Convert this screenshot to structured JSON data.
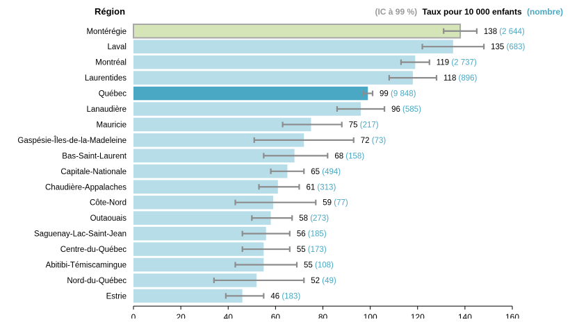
{
  "chart_data": {
    "type": "bar",
    "orientation": "horizontal",
    "category_header": "Région",
    "header": {
      "ci_label": "(IC à 99 %)",
      "rate_label": "Taux pour 10 000 enfants",
      "count_label": "(nombre)"
    },
    "xlim": [
      0,
      160
    ],
    "xticks": [
      0,
      20,
      40,
      60,
      80,
      100,
      120,
      140,
      160
    ],
    "grid": false,
    "categories": [
      "Montérégie",
      "Laval",
      "Montréal",
      "Laurentides",
      "Québec",
      "Lanaudière",
      "Mauricie",
      "Gaspésie-Îles-de-la-Madeleine",
      "Bas-Saint-Laurent",
      "Capitale-Nationale",
      "Chaudière-Appalaches",
      "Côte-Nord",
      "Outaouais",
      "Saguenay-Lac-Saint-Jean",
      "Centre-du-Québec",
      "Abitibi-Témiscamingue",
      "Nord-du-Québec",
      "Estrie"
    ],
    "values": [
      138,
      135,
      119,
      118,
      99,
      96,
      75,
      72,
      68,
      65,
      61,
      59,
      58,
      56,
      55,
      55,
      52,
      46
    ],
    "ci_low": [
      131,
      122,
      113,
      108,
      97,
      86,
      63,
      51,
      55,
      58,
      53,
      43,
      50,
      46,
      46,
      43,
      34,
      39
    ],
    "ci_high": [
      145,
      148,
      125,
      128,
      101,
      106,
      88,
      93,
      82,
      72,
      70,
      77,
      67,
      66,
      66,
      69,
      72,
      55
    ],
    "counts": [
      "2 644",
      "683",
      "2 737",
      "896",
      "9 848",
      "585",
      "217",
      "73",
      "158",
      "494",
      "313",
      "77",
      "273",
      "185",
      "173",
      "108",
      "49",
      "183"
    ],
    "highlight": {
      "Montérégie": "region",
      "Québec": "province"
    },
    "colors": {
      "bar": "#b7dde8",
      "bar_region": "#d5e5b8",
      "bar_region_border": "#a8a8a8",
      "bar_province": "#4aa8c4",
      "errorbar": "#8c8c8c",
      "count_text": "#4aa8c4",
      "header_gray": "#9a9a9a"
    }
  }
}
